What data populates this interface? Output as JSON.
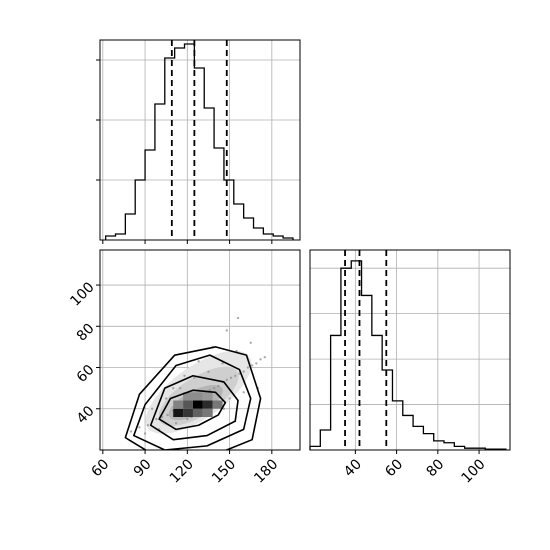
{
  "chart_data": [
    {
      "type": "histogram",
      "panel": "top-left",
      "variable": "x",
      "xlim": [
        58,
        200
      ],
      "ylim": [
        0,
        1.0
      ],
      "bin_edges": [
        62,
        69,
        76,
        83,
        90,
        97,
        104,
        111,
        118,
        125,
        132,
        139,
        146,
        153,
        160,
        167,
        174,
        181,
        188,
        195
      ],
      "counts": [
        0.02,
        0.03,
        0.13,
        0.3,
        0.45,
        0.68,
        0.91,
        0.96,
        0.98,
        0.86,
        0.66,
        0.46,
        0.3,
        0.18,
        0.11,
        0.06,
        0.03,
        0.02,
        0.01
      ],
      "quantiles": [
        109,
        125,
        148
      ],
      "grid": true,
      "ytick_positions": [
        0.3,
        0.6,
        0.9
      ]
    },
    {
      "type": "histogram",
      "panel": "bottom-right",
      "variable": "y",
      "xlim": [
        18,
        115
      ],
      "ylim": [
        0,
        1.0
      ],
      "bin_edges": [
        18,
        23,
        28,
        33,
        38,
        43,
        48,
        53,
        58,
        63,
        68,
        73,
        78,
        83,
        88,
        93,
        98,
        103,
        108,
        113
      ],
      "counts": [
        0.02,
        0.11,
        0.63,
        1.0,
        1.04,
        0.85,
        0.63,
        0.44,
        0.27,
        0.19,
        0.13,
        0.09,
        0.05,
        0.04,
        0.02,
        0.01,
        0.01,
        0.005,
        0.005
      ],
      "quantiles": [
        35,
        42,
        55
      ],
      "grid": true,
      "xticks": [
        40,
        60,
        80,
        100
      ],
      "xtick_labels": [
        "40",
        "60",
        "80",
        "100"
      ]
    },
    {
      "type": "scatter",
      "panel": "bottom-left",
      "variables": [
        "x",
        "y"
      ],
      "xlim": [
        58,
        200
      ],
      "ylim": [
        20,
        117
      ],
      "xticks": [
        60,
        90,
        120,
        150,
        180
      ],
      "xtick_labels": [
        "60",
        "90",
        "120",
        "150",
        "180"
      ],
      "yticks": [
        40,
        60,
        80,
        100
      ],
      "ytick_labels": [
        "40",
        "60",
        "80",
        "100"
      ],
      "grid": true,
      "points": [
        [
          92,
          32
        ],
        [
          102,
          36
        ],
        [
          110,
          39
        ],
        [
          118,
          42
        ],
        [
          124,
          44
        ],
        [
          130,
          46
        ],
        [
          136,
          49
        ],
        [
          142,
          51
        ],
        [
          148,
          54
        ],
        [
          154,
          56
        ],
        [
          160,
          58
        ],
        [
          166,
          61
        ],
        [
          172,
          64
        ],
        [
          80,
          29
        ],
        [
          86,
          31
        ],
        [
          98,
          35
        ],
        [
          106,
          37
        ],
        [
          114,
          40
        ],
        [
          121,
          43
        ],
        [
          127,
          45
        ],
        [
          133,
          48
        ],
        [
          139,
          50
        ],
        [
          145,
          53
        ],
        [
          151,
          55
        ],
        [
          157,
          57
        ],
        [
          163,
          60
        ],
        [
          169,
          62
        ],
        [
          175,
          65
        ],
        [
          95,
          40
        ],
        [
          105,
          45
        ],
        [
          115,
          50
        ],
        [
          125,
          55
        ],
        [
          135,
          58
        ],
        [
          145,
          62
        ],
        [
          155,
          68
        ],
        [
          165,
          72
        ],
        [
          120,
          35
        ],
        [
          130,
          38
        ],
        [
          140,
          42
        ],
        [
          150,
          45
        ],
        [
          160,
          48
        ],
        [
          170,
          50
        ],
        [
          110,
          50
        ],
        [
          118,
          56
        ],
        [
          128,
          63
        ],
        [
          138,
          70
        ],
        [
          148,
          78
        ],
        [
          156,
          84
        ],
        [
          90,
          28
        ],
        [
          100,
          30
        ],
        [
          112,
          33
        ],
        [
          123,
          36
        ],
        [
          134,
          38
        ],
        [
          146,
          40
        ]
      ],
      "density_cells": [
        {
          "x": [
            110,
            117
          ],
          "y": [
            36,
            40
          ],
          "level": 0.9
        },
        {
          "x": [
            117,
            124
          ],
          "y": [
            36,
            40
          ],
          "level": 0.75
        },
        {
          "x": [
            124,
            131
          ],
          "y": [
            40,
            44
          ],
          "level": 1.0
        },
        {
          "x": [
            131,
            138
          ],
          "y": [
            40,
            44
          ],
          "level": 0.8
        },
        {
          "x": [
            117,
            124
          ],
          "y": [
            40,
            44
          ],
          "level": 0.6
        },
        {
          "x": [
            124,
            131
          ],
          "y": [
            36,
            40
          ],
          "level": 0.55
        },
        {
          "x": [
            131,
            138
          ],
          "y": [
            36,
            40
          ],
          "level": 0.45
        },
        {
          "x": [
            138,
            145
          ],
          "y": [
            40,
            44
          ],
          "level": 0.45
        },
        {
          "x": [
            110,
            117
          ],
          "y": [
            40,
            44
          ],
          "level": 0.4
        },
        {
          "x": [
            117,
            124
          ],
          "y": [
            44,
            48
          ],
          "level": 0.35
        },
        {
          "x": [
            124,
            131
          ],
          "y": [
            44,
            48
          ],
          "level": 0.35
        },
        {
          "x": [
            131,
            138
          ],
          "y": [
            44,
            48
          ],
          "level": 0.3
        }
      ],
      "contours": [
        [
          [
            100,
            35
          ],
          [
            112,
            30
          ],
          [
            128,
            32
          ],
          [
            142,
            37
          ],
          [
            147,
            43
          ],
          [
            140,
            48
          ],
          [
            124,
            49
          ],
          [
            108,
            45
          ],
          [
            100,
            35
          ]
        ],
        [
          [
            94,
            32
          ],
          [
            110,
            25
          ],
          [
            134,
            27
          ],
          [
            154,
            34
          ],
          [
            156,
            44
          ],
          [
            146,
            53
          ],
          [
            124,
            56
          ],
          [
            104,
            50
          ],
          [
            94,
            32
          ]
        ],
        [
          [
            82,
            27
          ],
          [
            104,
            20
          ],
          [
            134,
            22
          ],
          [
            160,
            30
          ],
          [
            165,
            45
          ],
          [
            157,
            59
          ],
          [
            136,
            66
          ],
          [
            112,
            61
          ],
          [
            90,
            42
          ],
          [
            82,
            27
          ]
        ],
        [
          [
            76,
            26
          ],
          [
            100,
            16
          ],
          [
            137,
            17
          ],
          [
            166,
            25
          ],
          [
            172,
            45
          ],
          [
            162,
            66
          ],
          [
            140,
            70
          ],
          [
            111,
            66
          ],
          [
            86,
            47
          ],
          [
            76,
            26
          ]
        ]
      ]
    }
  ]
}
